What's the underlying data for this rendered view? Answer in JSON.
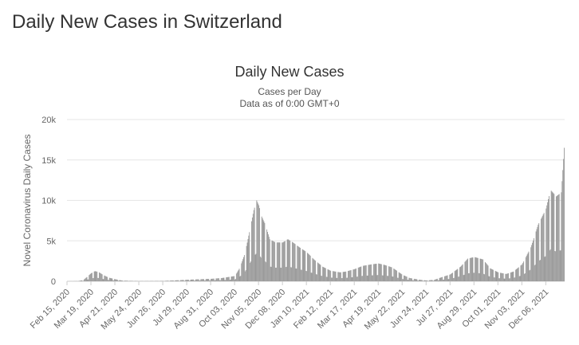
{
  "page": {
    "heading": "Daily New Cases in Switzerland"
  },
  "chart_data": {
    "type": "bar",
    "title": "Daily New Cases",
    "subtitle_lines": [
      "Cases per Day",
      "Data as of 0:00 GMT+0"
    ],
    "ylabel": "Novel Coronavirus Daily Cases",
    "xlabel": "",
    "ylim": [
      0,
      20000
    ],
    "y_ticks": [
      {
        "value": 0,
        "label": "0"
      },
      {
        "value": 5000,
        "label": "5k"
      },
      {
        "value": 10000,
        "label": "10k"
      },
      {
        "value": 15000,
        "label": "15k"
      },
      {
        "value": 20000,
        "label": "20k"
      }
    ],
    "x_range": [
      "2020-02-15",
      "2022-01-01"
    ],
    "x_ticks": [
      "Feb 15, 2020",
      "Mar 19, 2020",
      "Apr 21, 2020",
      "May 24, 2020",
      "Jun 26, 2020",
      "Jul 29, 2020",
      "Aug 31, 2020",
      "Oct 03, 2020",
      "Nov 05, 2020",
      "Dec 08, 2020",
      "Jan 10, 2021",
      "Feb 12, 2021",
      "Mar 17, 2021",
      "Apr 19, 2021",
      "May 22, 2021",
      "Jun 24, 2021",
      "Jul 27, 2021",
      "Aug 29, 2021",
      "Oct 01, 2021",
      "Nov 03, 2021",
      "Dec 06, 2021"
    ],
    "grid": true,
    "bar_color": "#999999",
    "series": [
      {
        "points": [
          [
            "2020-02-15",
            0
          ],
          [
            "2020-03-01",
            20
          ],
          [
            "2020-03-08",
            150
          ],
          [
            "2020-03-14",
            600
          ],
          [
            "2020-03-19",
            1000
          ],
          [
            "2020-03-24",
            1250
          ],
          [
            "2020-03-29",
            1150
          ],
          [
            "2020-04-04",
            800
          ],
          [
            "2020-04-12",
            450
          ],
          [
            "2020-04-21",
            250
          ],
          [
            "2020-05-01",
            80
          ],
          [
            "2020-05-24",
            20
          ],
          [
            "2020-06-26",
            40
          ],
          [
            "2020-07-15",
            120
          ],
          [
            "2020-07-29",
            180
          ],
          [
            "2020-08-15",
            250
          ],
          [
            "2020-08-31",
            300
          ],
          [
            "2020-09-15",
            400
          ],
          [
            "2020-10-03",
            650
          ],
          [
            "2020-10-10",
            1700
          ],
          [
            "2020-10-17",
            3500
          ],
          [
            "2020-10-24",
            6500
          ],
          [
            "2020-10-29",
            8800
          ],
          [
            "2020-11-02",
            10000
          ],
          [
            "2020-11-05",
            9400
          ],
          [
            "2020-11-09",
            8000
          ],
          [
            "2020-11-14",
            7000
          ],
          [
            "2020-11-20",
            5200
          ],
          [
            "2020-11-28",
            4800
          ],
          [
            "2020-12-08",
            4800
          ],
          [
            "2020-12-15",
            5200
          ],
          [
            "2020-12-22",
            4800
          ],
          [
            "2020-12-31",
            4200
          ],
          [
            "2021-01-10",
            3600
          ],
          [
            "2021-01-20",
            2700
          ],
          [
            "2021-02-01",
            1800
          ],
          [
            "2021-02-12",
            1300
          ],
          [
            "2021-02-25",
            1100
          ],
          [
            "2021-03-05",
            1200
          ],
          [
            "2021-03-17",
            1500
          ],
          [
            "2021-03-28",
            1900
          ],
          [
            "2021-04-10",
            2100
          ],
          [
            "2021-04-19",
            2200
          ],
          [
            "2021-04-28",
            2000
          ],
          [
            "2021-05-08",
            1700
          ],
          [
            "2021-05-22",
            800
          ],
          [
            "2021-06-01",
            400
          ],
          [
            "2021-06-15",
            180
          ],
          [
            "2021-06-24",
            100
          ],
          [
            "2021-07-05",
            180
          ],
          [
            "2021-07-15",
            500
          ],
          [
            "2021-07-27",
            850
          ],
          [
            "2021-08-10",
            1800
          ],
          [
            "2021-08-20",
            2800
          ],
          [
            "2021-08-29",
            3000
          ],
          [
            "2021-09-10",
            2700
          ],
          [
            "2021-09-20",
            1600
          ],
          [
            "2021-10-01",
            1100
          ],
          [
            "2021-10-12",
            900
          ],
          [
            "2021-10-22",
            1200
          ],
          [
            "2021-11-03",
            2100
          ],
          [
            "2021-11-15",
            4200
          ],
          [
            "2021-11-25",
            7000
          ],
          [
            "2021-12-06",
            9000
          ],
          [
            "2021-12-12",
            11300
          ],
          [
            "2021-12-20",
            10500
          ],
          [
            "2021-12-27",
            11000
          ],
          [
            "2021-12-31",
            16500
          ]
        ]
      }
    ]
  }
}
